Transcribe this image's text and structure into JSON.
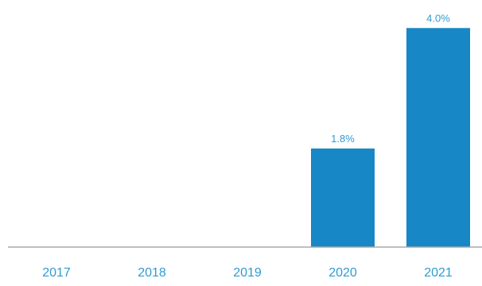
{
  "chart_data": {
    "type": "bar",
    "categories": [
      "2017",
      "2018",
      "2019",
      "2020",
      "2021"
    ],
    "values": [
      null,
      null,
      null,
      1.8,
      4.0
    ],
    "data_labels": [
      "",
      "",
      "",
      "1.8%",
      "4.0%"
    ],
    "ylim": [
      0,
      4.2
    ],
    "grid": false,
    "legend": "none",
    "colors": {
      "bar": "#1787c6",
      "label": "#2f9bd2",
      "axis": "#a8a8a8"
    }
  }
}
